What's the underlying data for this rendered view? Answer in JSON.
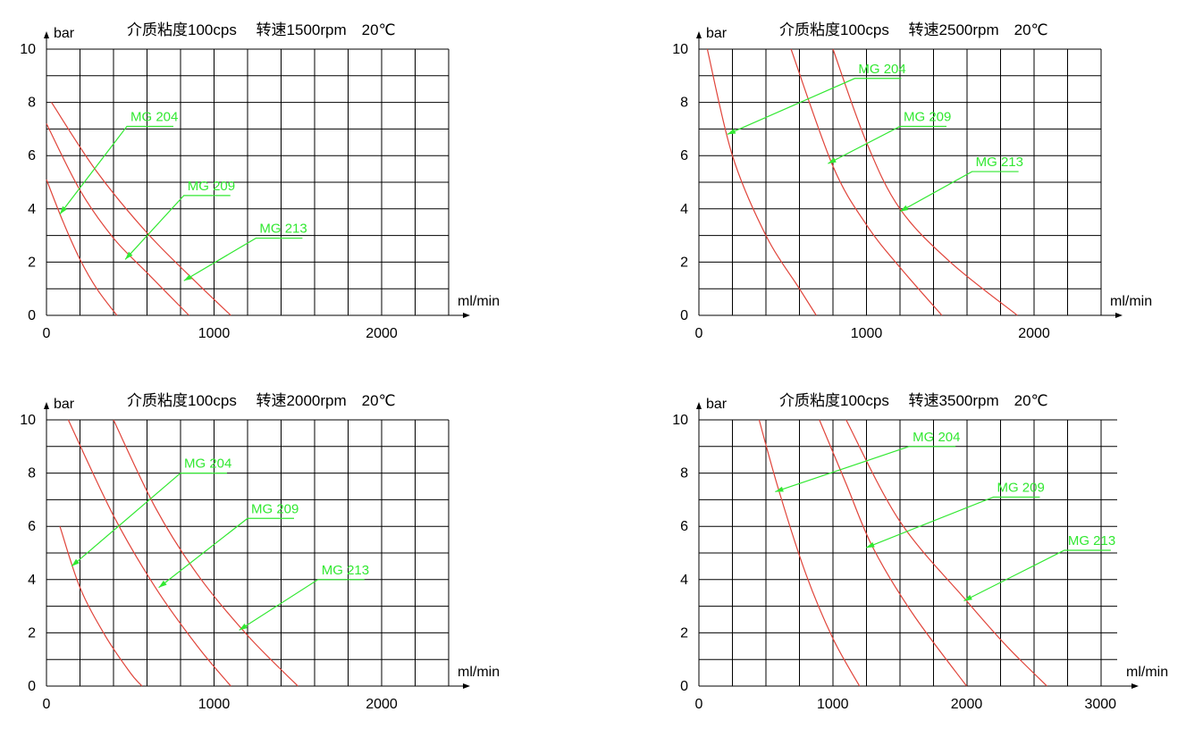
{
  "chart_data": [
    {
      "type": "line",
      "title": "介质粘度100cps　 转速1500rpm　20℃",
      "ylabel": "bar",
      "xlabel": "ml/min",
      "xlim": [
        0,
        2400
      ],
      "ylim": [
        0,
        10
      ],
      "xticks": [
        "0",
        "1000",
        "2000"
      ],
      "xtick_values": [
        0,
        1000,
        2000
      ],
      "yticks": [
        "0",
        "2",
        "4",
        "6",
        "8",
        "10"
      ],
      "grid": true,
      "series": [
        {
          "name": "MG 204",
          "x": [
            0,
            100,
            200,
            300,
            420
          ],
          "y": [
            5.1,
            3.5,
            2.1,
            1.0,
            0
          ]
        },
        {
          "name": "MG 209",
          "x": [
            0,
            200,
            400,
            600,
            850
          ],
          "y": [
            7.2,
            4.7,
            2.9,
            1.6,
            0
          ]
        },
        {
          "name": "MG 213",
          "x": [
            30,
            300,
            600,
            900,
            1100
          ],
          "y": [
            8.0,
            5.4,
            3.1,
            1.2,
            0
          ]
        }
      ],
      "annotations": [
        {
          "text": "MG 204",
          "label_at": [
            480,
            7.1
          ],
          "arrow_to": [
            80,
            3.8
          ]
        },
        {
          "text": "MG 209",
          "label_at": [
            820,
            4.5
          ],
          "arrow_to": [
            470,
            2.1
          ]
        },
        {
          "text": "MG 213",
          "label_at": [
            1250,
            2.9
          ],
          "arrow_to": [
            820,
            1.3
          ]
        }
      ]
    },
    {
      "type": "line",
      "title": "介质粘度100cps　 转速2500rpm　20℃",
      "ylabel": "bar",
      "xlabel": "ml/min",
      "xlim": [
        0,
        2400
      ],
      "ylim": [
        0,
        10
      ],
      "xticks": [
        "0",
        "1000",
        "2000"
      ],
      "xtick_values": [
        0,
        1000,
        2000
      ],
      "yticks": [
        "0",
        "2",
        "4",
        "6",
        "8",
        "10"
      ],
      "grid": true,
      "series": [
        {
          "name": "MG 204",
          "x": [
            50,
            200,
            400,
            600,
            700
          ],
          "y": [
            10.0,
            6.0,
            3.0,
            1.0,
            0
          ]
        },
        {
          "name": "MG 209",
          "x": [
            550,
            800,
            1000,
            1200,
            1450
          ],
          "y": [
            10.0,
            5.6,
            3.4,
            1.8,
            0
          ]
        },
        {
          "name": "MG 213",
          "x": [
            800,
            1000,
            1200,
            1500,
            1900
          ],
          "y": [
            10.0,
            6.5,
            4.0,
            2.0,
            0
          ]
        }
      ],
      "annotations": [
        {
          "text": "MG 204",
          "label_at": [
            930,
            8.9
          ],
          "arrow_to": [
            170,
            6.8
          ]
        },
        {
          "text": "MG 209",
          "label_at": [
            1200,
            7.1
          ],
          "arrow_to": [
            770,
            5.7
          ]
        },
        {
          "text": "MG 213",
          "label_at": [
            1630,
            5.4
          ],
          "arrow_to": [
            1200,
            3.9
          ]
        }
      ]
    },
    {
      "type": "line",
      "title": "介质粘度100cps　 转速2000rpm　20℃",
      "ylabel": "bar",
      "xlabel": "ml/min",
      "xlim": [
        0,
        2400
      ],
      "ylim": [
        0,
        10
      ],
      "xticks": [
        "0",
        "1000",
        "2000"
      ],
      "xtick_values": [
        0,
        1000,
        2000
      ],
      "yticks": [
        "0",
        "2",
        "4",
        "6",
        "8",
        "10"
      ],
      "grid": true,
      "series": [
        {
          "name": "MG 204",
          "x": [
            80,
            200,
            350,
            500,
            570
          ],
          "y": [
            6.0,
            3.7,
            1.9,
            0.5,
            0
          ]
        },
        {
          "name": "MG 209",
          "x": [
            130,
            400,
            650,
            900,
            1100
          ],
          "y": [
            10.0,
            6.4,
            3.7,
            1.5,
            0
          ]
        },
        {
          "name": "MG 213",
          "x": [
            400,
            650,
            900,
            1200,
            1500
          ],
          "y": [
            10.0,
            6.7,
            4.2,
            1.9,
            0
          ]
        }
      ],
      "annotations": [
        {
          "text": "MG 204",
          "label_at": [
            800,
            8.0
          ],
          "arrow_to": [
            150,
            4.5
          ]
        },
        {
          "text": "MG 209",
          "label_at": [
            1200,
            6.3
          ],
          "arrow_to": [
            670,
            3.7
          ]
        },
        {
          "text": "MG 213",
          "label_at": [
            1620,
            4.0
          ],
          "arrow_to": [
            1150,
            2.1
          ]
        }
      ]
    },
    {
      "type": "line",
      "title": "介质粘度100cps　 转速3500rpm　20℃",
      "ylabel": "bar",
      "xlabel": "ml/min",
      "xlim": [
        0,
        3100
      ],
      "ylim": [
        0,
        10
      ],
      "xticks": [
        "0",
        "1000",
        "2000",
        "3000"
      ],
      "xtick_values": [
        0,
        1000,
        2000,
        3000
      ],
      "yticks": [
        "0",
        "2",
        "4",
        "6",
        "8",
        "10"
      ],
      "grid": true,
      "series": [
        {
          "name": "MG 204",
          "x": [
            450,
            600,
            800,
            1000,
            1200
          ],
          "y": [
            10.0,
            7.3,
            4.2,
            1.8,
            0
          ]
        },
        {
          "name": "MG 209",
          "x": [
            900,
            1100,
            1300,
            1600,
            2000
          ],
          "y": [
            10.0,
            7.6,
            5.2,
            2.7,
            0
          ]
        },
        {
          "name": "MG 213",
          "x": [
            1100,
            1500,
            2000,
            2300,
            2600
          ],
          "y": [
            10.0,
            6.2,
            3.2,
            1.5,
            0
          ]
        }
      ],
      "annotations": [
        {
          "text": "MG 204",
          "label_at": [
            1570,
            9.0
          ],
          "arrow_to": [
            570,
            7.3
          ]
        },
        {
          "text": "MG 209",
          "label_at": [
            2200,
            7.1
          ],
          "arrow_to": [
            1250,
            5.2
          ]
        },
        {
          "text": "MG 213",
          "label_at": [
            2730,
            5.1
          ],
          "arrow_to": [
            1980,
            3.2
          ]
        }
      ]
    }
  ]
}
